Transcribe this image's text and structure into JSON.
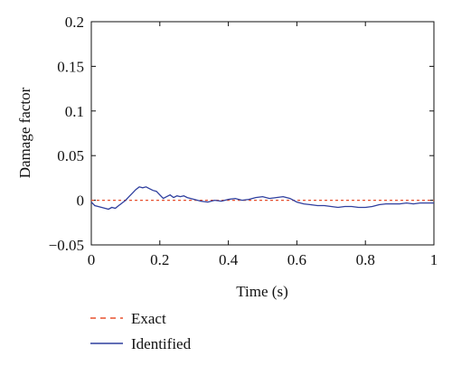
{
  "chart_data": {
    "type": "line",
    "xlabel": "Time (s)",
    "ylabel": "Damage factor",
    "xlim": [
      0,
      1
    ],
    "ylim": [
      -0.05,
      0.2
    ],
    "x_ticks": [
      "0",
      "0.2",
      "0.4",
      "0.6",
      "0.8",
      "1"
    ],
    "y_ticks": [
      "−0.05",
      "0",
      "0.05",
      "0.1",
      "0.15",
      "0.2"
    ],
    "grid": false,
    "legend_position": "bottom-left, below plot",
    "series": [
      {
        "name": "Exact",
        "color": "#e8502f",
        "style": "dashed",
        "x": [
          0,
          1
        ],
        "y": [
          0,
          0
        ]
      },
      {
        "name": "Identified",
        "color": "#2f3f9e",
        "style": "solid",
        "x": [
          0,
          0.01,
          0.02,
          0.03,
          0.04,
          0.05,
          0.06,
          0.07,
          0.08,
          0.09,
          0.1,
          0.11,
          0.12,
          0.13,
          0.14,
          0.15,
          0.16,
          0.17,
          0.18,
          0.19,
          0.2,
          0.21,
          0.22,
          0.23,
          0.24,
          0.25,
          0.26,
          0.27,
          0.28,
          0.29,
          0.3,
          0.32,
          0.34,
          0.36,
          0.38,
          0.4,
          0.42,
          0.44,
          0.46,
          0.48,
          0.5,
          0.52,
          0.54,
          0.56,
          0.58,
          0.6,
          0.62,
          0.64,
          0.66,
          0.68,
          0.7,
          0.72,
          0.74,
          0.76,
          0.78,
          0.8,
          0.82,
          0.84,
          0.86,
          0.88,
          0.9,
          0.92,
          0.94,
          0.96,
          0.98,
          1.0
        ],
        "y": [
          -0.002,
          -0.006,
          -0.007,
          -0.008,
          -0.009,
          -0.01,
          -0.008,
          -0.009,
          -0.006,
          -0.003,
          0.0,
          0.004,
          0.008,
          0.012,
          0.015,
          0.014,
          0.015,
          0.013,
          0.011,
          0.01,
          0.006,
          0.002,
          0.004,
          0.006,
          0.003,
          0.005,
          0.004,
          0.005,
          0.003,
          0.002,
          0.001,
          -0.001,
          -0.002,
          0.0,
          -0.001,
          0.001,
          0.002,
          0.0,
          0.001,
          0.003,
          0.004,
          0.002,
          0.003,
          0.004,
          0.002,
          -0.002,
          -0.004,
          -0.005,
          -0.006,
          -0.006,
          -0.007,
          -0.008,
          -0.007,
          -0.007,
          -0.008,
          -0.008,
          -0.007,
          -0.005,
          -0.004,
          -0.004,
          -0.004,
          -0.003,
          -0.004,
          -0.003,
          -0.003,
          -0.003
        ]
      }
    ]
  }
}
